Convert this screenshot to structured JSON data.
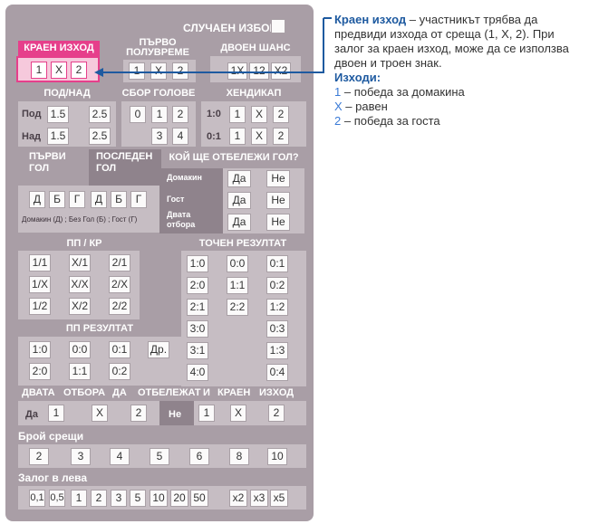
{
  "random_choice": "СЛУЧАЕН ИЗБОР",
  "final_result": {
    "title": "КРАЕН ИЗХОД",
    "options": [
      "1",
      "X",
      "2"
    ]
  },
  "halftime": {
    "title_line1": "ПЪРВО",
    "title_line2": "ПОЛУВРЕМЕ",
    "options": [
      "1",
      "X",
      "2"
    ]
  },
  "double_chance": {
    "title": "ДВОЕН ШАНС",
    "options": [
      "1X",
      "12",
      "X2"
    ]
  },
  "over_under": {
    "title": "ПОД/НАД",
    "rows": [
      {
        "label": "Под",
        "a": "1.5",
        "b": "2.5"
      },
      {
        "label": "Над",
        "a": "1.5",
        "b": "2.5"
      }
    ]
  },
  "total_goals": {
    "title": "СБОР ГОЛОВЕ",
    "row1": [
      "0",
      "1",
      "2"
    ],
    "row2": [
      "3",
      "4"
    ]
  },
  "handicap": {
    "title": "ХЕНДИКАП",
    "rows": [
      {
        "label": "1:0",
        "opts": [
          "1",
          "X",
          "2"
        ]
      },
      {
        "label": "0:1",
        "opts": [
          "1",
          "X",
          "2"
        ]
      }
    ]
  },
  "first_goal": {
    "title_line1": "ПЪРВИ",
    "title_line2": "ГОЛ",
    "options": [
      "Д",
      "Б",
      "Г"
    ]
  },
  "last_goal": {
    "title_line1": "ПОСЛЕДЕН",
    "title_line2": "ГОЛ",
    "options": [
      "Д",
      "Б",
      "Г"
    ]
  },
  "goal_legend": "Домакин (Д) ; Без Гол (Б) ; Гост (Г)",
  "who_scores": {
    "title": "КОЙ ЩЕ ОТБЕЛЕЖИ ГОЛ?",
    "rows": [
      {
        "label": "Домакин",
        "yes": "Да",
        "no": "Не"
      },
      {
        "label": "Гост",
        "yes": "Да",
        "no": "Не"
      },
      {
        "label_line1": "Двата",
        "label_line2": "отбора",
        "yes": "Да",
        "no": "Не"
      }
    ]
  },
  "ht_ft": {
    "title": "ПП / КР",
    "rows": [
      [
        "1/1",
        "X/1",
        "2/1"
      ],
      [
        "1/X",
        "X/X",
        "2/X"
      ],
      [
        "1/2",
        "X/2",
        "2/2"
      ]
    ]
  },
  "ht_result": {
    "title": "ПП РЕЗУЛТАТ",
    "rows": [
      [
        "1:0",
        "0:0",
        "0:1"
      ],
      [
        "2:0",
        "1:1",
        "0:2"
      ]
    ],
    "other": "Др."
  },
  "exact_score": {
    "title": "ТОЧЕН РЕЗУЛТАТ",
    "col1": [
      "1:0",
      "2:0",
      "2:1",
      "3:0",
      "3:1",
      "4:0"
    ],
    "col2": [
      "0:0",
      "1:1",
      "2:2"
    ],
    "col3": [
      "0:1",
      "0:2",
      "1:2",
      "0:3",
      "1:3",
      "0:4"
    ]
  },
  "both_score_final": {
    "title_words": [
      "ДВАТА",
      "ОТБОРА",
      "ДА",
      "ОТБЕЛЕЖАТ",
      "И",
      "КРАЕН",
      "ИЗХОД"
    ],
    "yes_label": "Да",
    "no_label": "Не",
    "yes_opts": [
      "1",
      "X",
      "2"
    ],
    "no_opts": [
      "1",
      "X",
      "2"
    ]
  },
  "draws": {
    "title": "Брой срещи",
    "options": [
      "2",
      "3",
      "4",
      "5",
      "6",
      "8",
      "10"
    ]
  },
  "stake": {
    "title": "Залог в лева",
    "options": [
      "0,1",
      "0,5",
      "1",
      "2",
      "3",
      "5",
      "10",
      "20",
      "50"
    ],
    "multipliers": [
      "x2",
      "x3",
      "x5"
    ]
  },
  "info": {
    "title": "Краен изход",
    "text": " – участникът трябва да предвиди изхода от среща (1, X, 2). При залог за краен изход, може да се използва двоен и троен знак.",
    "outcomes_title": "Изходи:",
    "items": [
      {
        "key": "1",
        "text": " – победа за домакина"
      },
      {
        "key": "X",
        "text": " – равен"
      },
      {
        "key": "2",
        "text": " – победа за госта"
      }
    ]
  },
  "colors": {
    "accent": "#e63f8b",
    "ticket": "#a99ea6",
    "info_blue": "#1e5aa0",
    "arrow": "#1e5aa0"
  }
}
